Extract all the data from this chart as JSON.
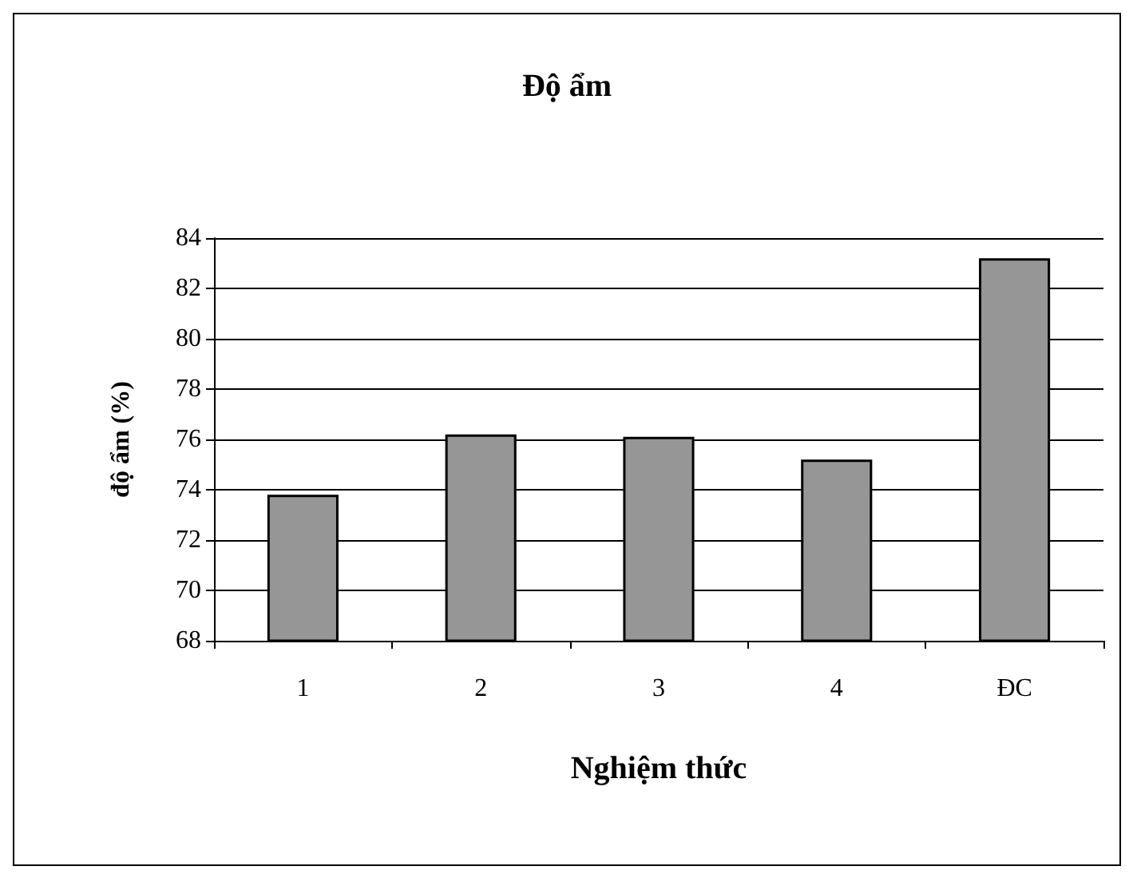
{
  "chart_data": {
    "type": "bar",
    "title": "Độ ẩm",
    "xlabel": "Nghiệm thức",
    "ylabel": "độ ẩm (%)",
    "categories": [
      "1",
      "2",
      "3",
      "4",
      "ĐC"
    ],
    "values": [
      73.8,
      76.2,
      76.1,
      75.2,
      83.2
    ],
    "color": "#969696",
    "ylim": [
      68,
      84
    ],
    "yticks": [
      68,
      70,
      72,
      74,
      76,
      78,
      80,
      82,
      84
    ],
    "grid": "y"
  }
}
